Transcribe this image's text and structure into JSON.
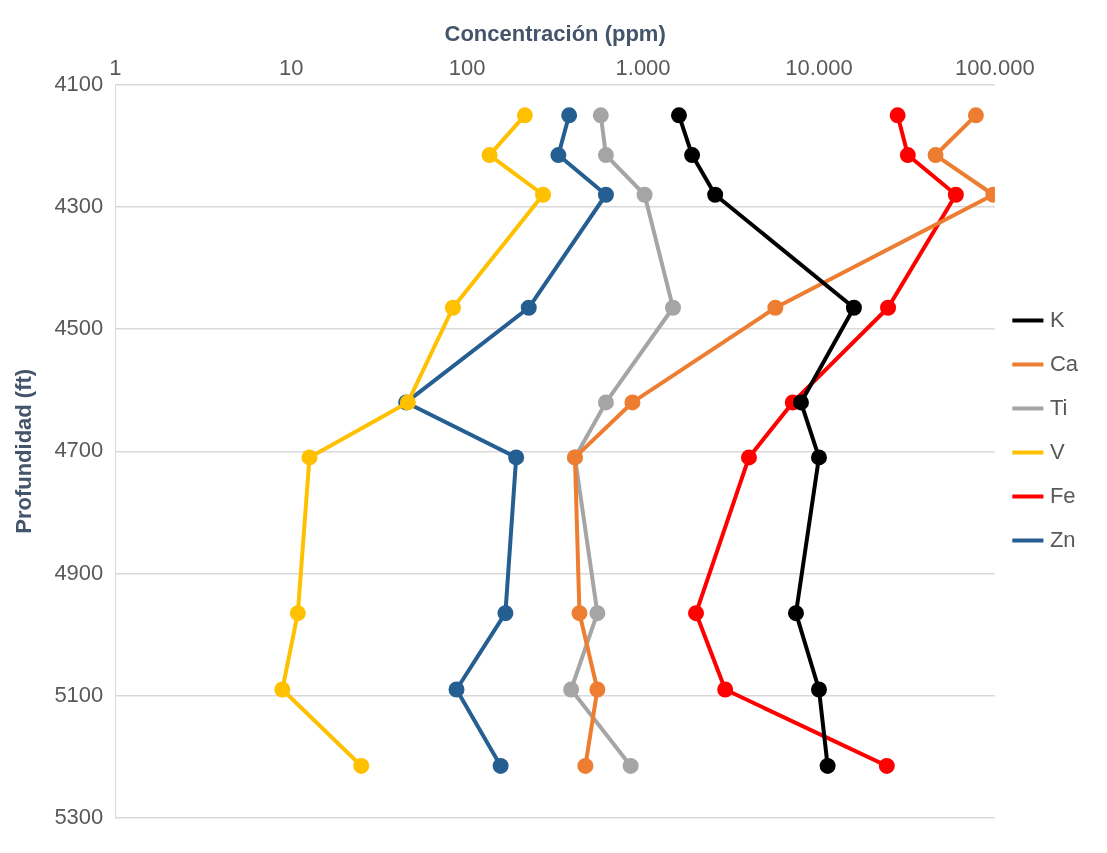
{
  "chart_data": {
    "type": "line",
    "xlabel": "Concentración (ppm)",
    "ylabel": "Profundidad (ft)",
    "log": "x",
    "xlim": [
      1,
      100000
    ],
    "xticks": [
      1,
      10,
      100,
      {
        "value": 1000,
        "label": "1.000"
      },
      {
        "value": 10000,
        "label": "10.000"
      },
      {
        "value": 100000,
        "label": "100.000"
      }
    ],
    "ylim": [
      5300,
      4100
    ],
    "yticks": [
      4100,
      4300,
      4500,
      4700,
      4900,
      5100,
      5300
    ],
    "grid": "y",
    "legend": "right",
    "marker": "circle",
    "line_style": "solid",
    "series": [
      {
        "name": "K",
        "color": "#000000",
        "x": [
          1600,
          1900,
          2570,
          15800,
          7900,
          10000,
          7400,
          10000,
          11200
        ],
        "values": [
          4150,
          4215,
          4280,
          4465,
          4620,
          4710,
          4965,
          5090,
          5215
        ]
      },
      {
        "name": "Ca",
        "color": "#ed7d31",
        "x": [
          78000,
          46000,
          98000,
          5650,
          870,
          410,
          435,
          550,
          470
        ],
        "values": [
          4150,
          4215,
          4280,
          4465,
          4620,
          4710,
          4965,
          5090,
          5215
        ]
      },
      {
        "name": "Ti",
        "color": "#a5a5a5",
        "x": [
          575,
          615,
          1020,
          1480,
          615,
          410,
          550,
          390,
          850
        ],
        "values": [
          4150,
          4215,
          4280,
          4465,
          4620,
          4710,
          4965,
          5090,
          5215
        ]
      },
      {
        "name": "V",
        "color": "#ffc000",
        "x": [
          213,
          134,
          270,
          83,
          46,
          12.7,
          10.9,
          8.9,
          25
        ],
        "values": [
          4150,
          4215,
          4280,
          4465,
          4620,
          4710,
          4965,
          5090,
          5215
        ]
      },
      {
        "name": "Fe",
        "color": "#ff0000",
        "x": [
          28000,
          32000,
          60000,
          24700,
          7100,
          4000,
          2000,
          2930,
          24300
        ],
        "values": [
          4150,
          4215,
          4280,
          4465,
          4620,
          4710,
          4965,
          5090,
          5215
        ]
      },
      {
        "name": "Zn",
        "color": "#255e91",
        "x": [
          380,
          330,
          615,
          224,
          45,
          190,
          165,
          87,
          155
        ],
        "values": [
          4150,
          4215,
          4280,
          4465,
          4620,
          4710,
          4965,
          5090,
          5215
        ]
      }
    ]
  }
}
